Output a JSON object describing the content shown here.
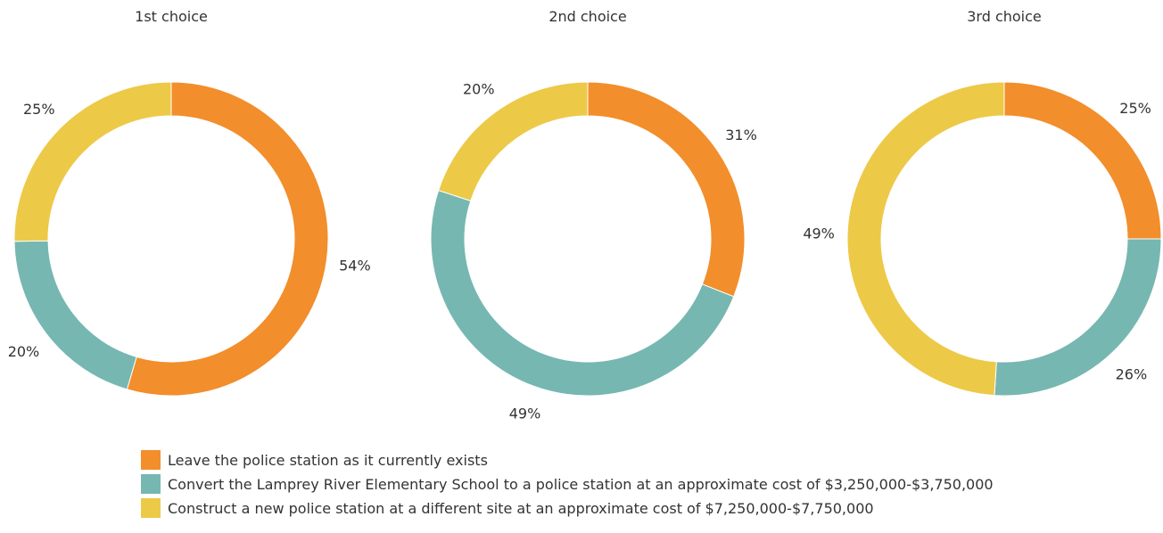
{
  "colors": {
    "leave": "#F28E2B",
    "convert": "#76B7B2",
    "construct": "#EDC948"
  },
  "legend": [
    {
      "key": "leave",
      "label": "Leave the police station as it currently exists"
    },
    {
      "key": "convert",
      "label": "Convert the Lamprey River Elementary School to a police station at an approximate cost of $3,250,000-$3,750,000"
    },
    {
      "key": "construct",
      "label": "Construct a new police station at a different site at an approximate cost of $7,250,000-$7,750,000"
    }
  ],
  "chart_data": [
    {
      "type": "pie",
      "donut": true,
      "title": "1st choice",
      "slices": [
        {
          "key": "leave",
          "value": 54,
          "label": "54%"
        },
        {
          "key": "convert",
          "value": 20,
          "label": "20%"
        },
        {
          "key": "construct",
          "value": 25,
          "label": "25%"
        }
      ]
    },
    {
      "type": "pie",
      "donut": true,
      "title": "2nd choice",
      "slices": [
        {
          "key": "leave",
          "value": 31,
          "label": "31%"
        },
        {
          "key": "convert",
          "value": 49,
          "label": "49%"
        },
        {
          "key": "construct",
          "value": 20,
          "label": "20%"
        }
      ]
    },
    {
      "type": "pie",
      "donut": true,
      "title": "3rd choice",
      "slices": [
        {
          "key": "leave",
          "value": 25,
          "label": "25%"
        },
        {
          "key": "convert",
          "value": 26,
          "label": "26%"
        },
        {
          "key": "construct",
          "value": 49,
          "label": "49%"
        }
      ]
    }
  ]
}
